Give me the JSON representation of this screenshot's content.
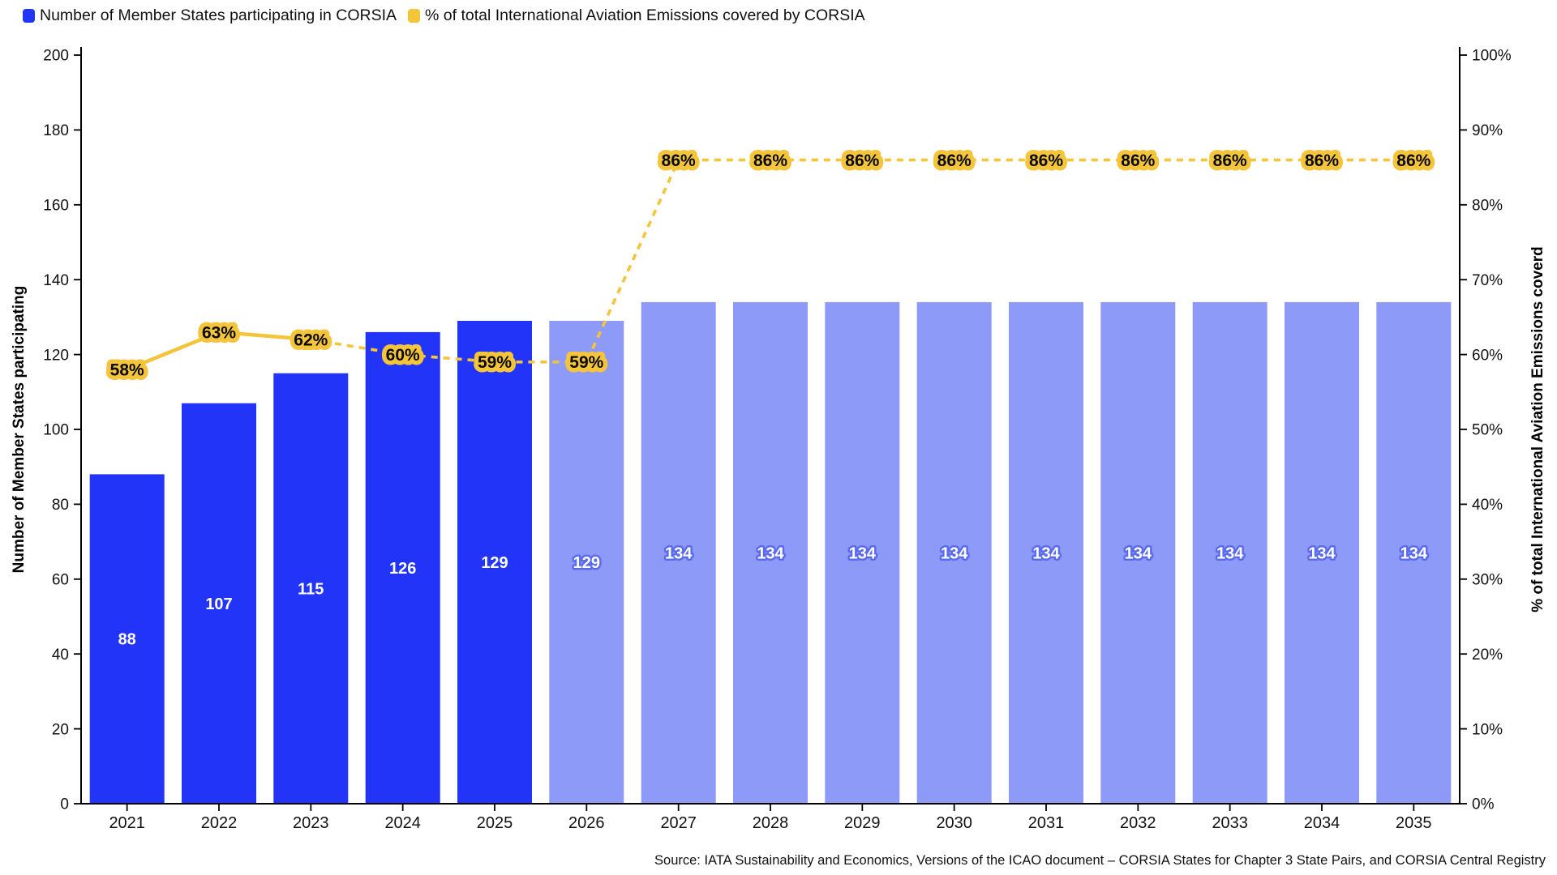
{
  "legend": {
    "items": [
      {
        "label": "Number of Member States participating in CORSIA",
        "color": "#2134F8"
      },
      {
        "label": "% of total International Aviation Emissions covered by CORSIA",
        "color": "#F4C43B"
      }
    ]
  },
  "source": "Source: IATA Sustainability and Economics, Versions of the ICAO document – CORSIA States for Chapter 3 State Pairs, and CORSIA Central Registry",
  "chart_data": {
    "type": "bar+line",
    "categories": [
      "2021",
      "2022",
      "2023",
      "2024",
      "2025",
      "2026",
      "2027",
      "2028",
      "2029",
      "2030",
      "2031",
      "2032",
      "2033",
      "2034",
      "2035"
    ],
    "series": [
      {
        "name": "Number of Member States participating in CORSIA",
        "type": "bar",
        "axis": "left",
        "values": [
          88,
          107,
          115,
          126,
          129,
          129,
          134,
          134,
          134,
          134,
          134,
          134,
          134,
          134,
          134
        ],
        "bar_color_actual": "#2134F8",
        "bar_color_projected": "#8E9AF8",
        "value_label_color": "#ffffff",
        "projected_label_halo_color": "#5B6BEF",
        "projected_from_category": "2026"
      },
      {
        "name": "% of total International Aviation Emissions covered by CORSIA",
        "type": "line",
        "axis": "right",
        "values": [
          58,
          63,
          62,
          60,
          59,
          59,
          86,
          86,
          86,
          86,
          86,
          86,
          86,
          86,
          86
        ],
        "unit": "%",
        "color": "#F4C43B",
        "label_text_color": "#0a0a0a",
        "solid_until_category": "2023",
        "style_after_solid": "dashed"
      }
    ],
    "left_axis": {
      "label": "Number of Member States participating",
      "min": 0,
      "max": 200,
      "tick_step": 20
    },
    "right_axis": {
      "label": "% of total International Aviation Emissions coverd",
      "min": 0,
      "max": 100,
      "tick_step": 10,
      "tick_suffix": "%"
    },
    "grid": false,
    "legend_position": "top-left",
    "background": "#ffffff"
  }
}
